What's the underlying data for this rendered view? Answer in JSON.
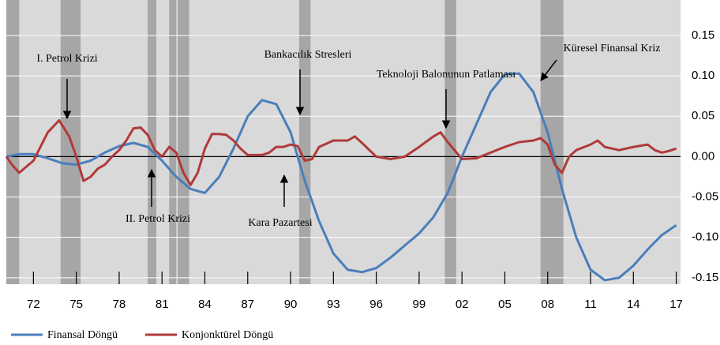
{
  "chart_data": {
    "type": "line",
    "xlim": [
      1970.1,
      2017.3
    ],
    "ylim": [
      -0.158,
      0.194
    ],
    "yticks": [
      {
        "value": 0.15,
        "label": "0.15"
      },
      {
        "value": 0.1,
        "label": "0.10"
      },
      {
        "value": 0.05,
        "label": "0.05"
      },
      {
        "value": 0,
        "label": "0.00"
      },
      {
        "value": -0.05,
        "label": "-0.05"
      },
      {
        "value": -0.1,
        "label": "-0.10"
      },
      {
        "value": -0.15,
        "label": "-0.15"
      }
    ],
    "xticks": [
      {
        "value": 1972,
        "label": "72"
      },
      {
        "value": 1975,
        "label": "75"
      },
      {
        "value": 1978,
        "label": "78"
      },
      {
        "value": 1981,
        "label": "81"
      },
      {
        "value": 1984,
        "label": "84"
      },
      {
        "value": 1987,
        "label": "87"
      },
      {
        "value": 1990,
        "label": "90"
      },
      {
        "value": 1993,
        "label": "93"
      },
      {
        "value": 1996,
        "label": "96"
      },
      {
        "value": 1999,
        "label": "99"
      },
      {
        "value": 2002,
        "label": "02"
      },
      {
        "value": 2005,
        "label": "05"
      },
      {
        "value": 2008,
        "label": "08"
      },
      {
        "value": 2011,
        "label": "11"
      },
      {
        "value": 2014,
        "label": "14"
      },
      {
        "value": 2017,
        "label": "17"
      }
    ],
    "grid": true,
    "shaded_periods": [
      [
        1970.1,
        1971.0
      ],
      [
        1973.9,
        1975.3
      ],
      [
        1980.0,
        1980.6
      ],
      [
        1981.5,
        1982.0
      ],
      [
        1982.1,
        1982.9
      ],
      [
        1990.6,
        1991.4
      ],
      [
        2000.8,
        2001.6
      ],
      [
        2007.5,
        2009.1
      ]
    ],
    "series": [
      {
        "name": "Finansal Döngü",
        "color": "#4a7ebb",
        "x": [
          1970.1,
          1971,
          1972,
          1973,
          1974,
          1975,
          1976,
          1977,
          1978,
          1979,
          1980,
          1981,
          1982,
          1983,
          1984,
          1985,
          1986,
          1987,
          1988,
          1989,
          1990,
          1991,
          1992,
          1993,
          1994,
          1995,
          1996,
          1997,
          1998,
          1999,
          2000,
          2001,
          2002,
          2003,
          2004,
          2005,
          2006,
          2007,
          2008,
          2009,
          2010,
          2011,
          2012,
          2013,
          2014,
          2015,
          2016,
          2017
        ],
        "values": [
          0.0,
          0.003,
          0.003,
          -0.002,
          -0.008,
          -0.01,
          -0.005,
          0.005,
          0.013,
          0.017,
          0.012,
          -0.005,
          -0.025,
          -0.04,
          -0.045,
          -0.025,
          0.01,
          0.05,
          0.07,
          0.065,
          0.03,
          -0.03,
          -0.08,
          -0.12,
          -0.14,
          -0.143,
          -0.138,
          -0.125,
          -0.11,
          -0.095,
          -0.075,
          -0.045,
          0.0,
          0.04,
          0.08,
          0.102,
          0.103,
          0.08,
          0.03,
          -0.04,
          -0.1,
          -0.14,
          -0.153,
          -0.15,
          -0.135,
          -0.115,
          -0.097,
          -0.085
        ]
      },
      {
        "name": "Konjonktürel Döngü",
        "color": "#b03a3a",
        "x": [
          1970.1,
          1970.5,
          1971,
          1972,
          1973,
          1973.8,
          1974.5,
          1975,
          1975.5,
          1976,
          1976.5,
          1977,
          1977.5,
          1978,
          1978.5,
          1979,
          1979.5,
          1980,
          1980.5,
          1981,
          1981.5,
          1982,
          1982.5,
          1983,
          1983.5,
          1984,
          1984.5,
          1985,
          1985.5,
          1986,
          1986.5,
          1987,
          1987.5,
          1988,
          1988.5,
          1989,
          1989.5,
          1990,
          1990.5,
          1991,
          1991.5,
          1992,
          1993,
          1994,
          1994.5,
          1995,
          1996,
          1997,
          1998,
          1999,
          2000,
          2000.5,
          2001,
          2002,
          2003,
          2004,
          2005,
          2006,
          2007,
          2007.5,
          2008,
          2008.5,
          2009,
          2009.5,
          2010,
          2011,
          2011.5,
          2012,
          2013,
          2014,
          2015,
          2015.5,
          2016,
          2016.5,
          2017
        ],
        "values": [
          0.0,
          -0.01,
          -0.02,
          -0.005,
          0.03,
          0.045,
          0.025,
          0.0,
          -0.03,
          -0.025,
          -0.015,
          -0.01,
          0.0,
          0.008,
          0.02,
          0.035,
          0.036,
          0.027,
          0.008,
          0.0,
          0.012,
          0.005,
          -0.02,
          -0.035,
          -0.02,
          0.01,
          0.028,
          0.028,
          0.027,
          0.02,
          0.01,
          0.002,
          0.002,
          0.002,
          0.005,
          0.012,
          0.012,
          0.015,
          0.013,
          -0.005,
          -0.003,
          0.012,
          0.02,
          0.02,
          0.025,
          0.017,
          0.0,
          -0.003,
          0.0,
          0.012,
          0.025,
          0.03,
          0.018,
          -0.003,
          -0.002,
          0.005,
          0.012,
          0.018,
          0.02,
          0.023,
          0.015,
          -0.01,
          -0.02,
          0.0,
          0.008,
          0.015,
          0.02,
          0.012,
          0.008,
          0.012,
          0.015,
          0.008,
          0.005,
          0.007,
          0.01
        ]
      }
    ],
    "annotations": [
      "I. Petrol Krizi",
      "II. Petrol Krizi",
      "Bankacılık Stresleri",
      "Kara Pazartesi",
      "Teknoloji Balonunun Patlaması",
      "Küresel Finansal Kriz"
    ]
  }
}
